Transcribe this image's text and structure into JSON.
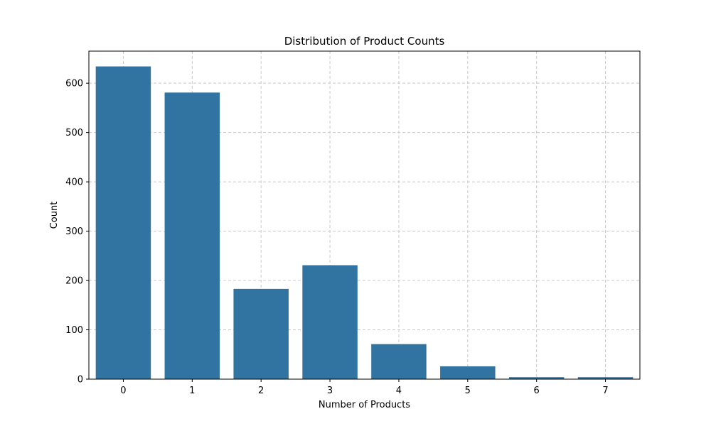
{
  "chart_data": {
    "type": "bar",
    "title": "Distribution of Product Counts",
    "xlabel": "Number of Products",
    "ylabel": "Count",
    "categories": [
      "0",
      "1",
      "2",
      "3",
      "4",
      "5",
      "6",
      "7"
    ],
    "values": [
      634,
      581,
      183,
      231,
      71,
      26,
      4,
      4
    ],
    "ylim": [
      0,
      665
    ],
    "yticks": [
      0,
      100,
      200,
      300,
      400,
      500,
      600
    ],
    "grid": true,
    "bar_color": "#3274a1",
    "grid_color": "#c8c8c8"
  }
}
